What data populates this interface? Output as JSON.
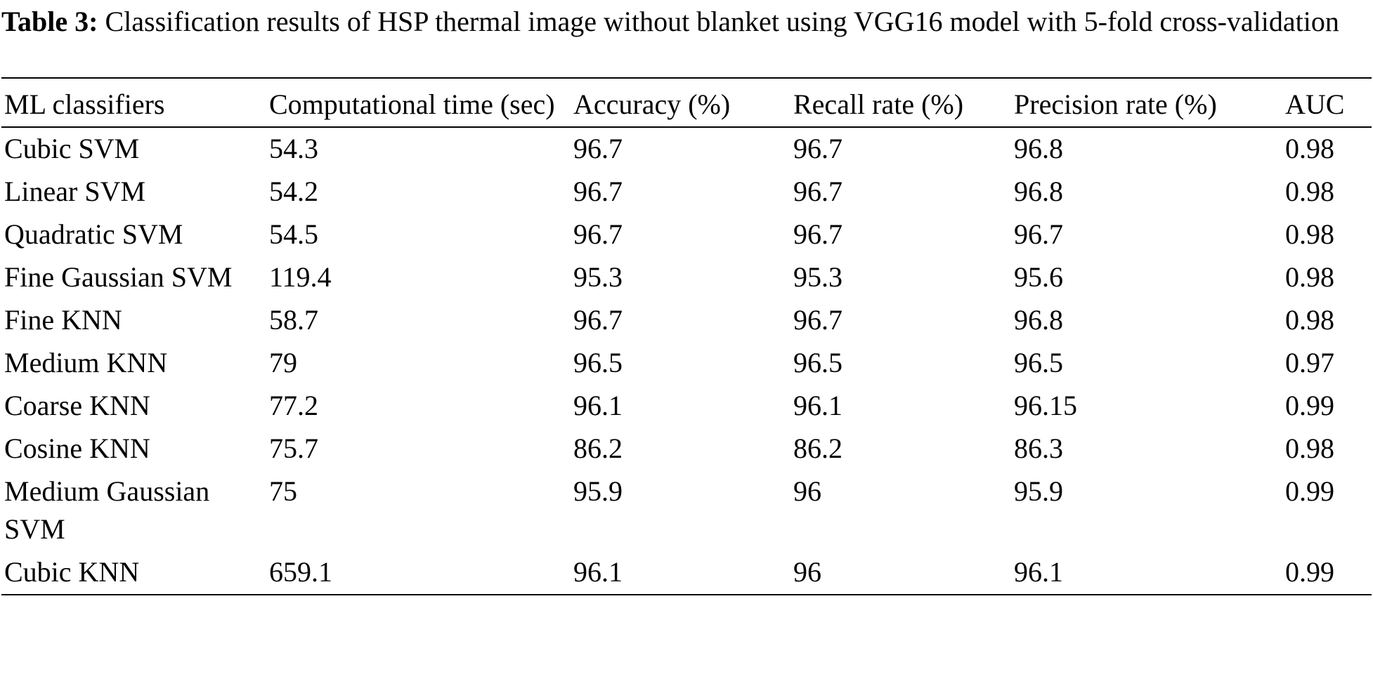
{
  "caption": {
    "label": "Table 3:",
    "text": "Classification results of HSP thermal image without blanket using VGG16 model with 5-fold cross-validation"
  },
  "table": {
    "header": [
      "ML classifiers",
      "Computational time (sec)",
      "Accuracy (%)",
      "Recall rate (%)",
      "Precision rate (%)",
      "AUC"
    ],
    "rows": [
      [
        "Cubic SVM",
        "54.3",
        "96.7",
        "96.7",
        "96.8",
        "0.98"
      ],
      [
        "Linear SVM",
        "54.2",
        "96.7",
        "96.7",
        "96.8",
        "0.98"
      ],
      [
        "Quadratic SVM",
        "54.5",
        "96.7",
        "96.7",
        "96.7",
        "0.98"
      ],
      [
        "Fine Gaussian SVM",
        "119.4",
        "95.3",
        "95.3",
        "95.6",
        "0.98"
      ],
      [
        "Fine KNN",
        "58.7",
        "96.7",
        "96.7",
        "96.8",
        "0.98"
      ],
      [
        "Medium KNN",
        "79",
        "96.5",
        "96.5",
        "96.5",
        "0.97"
      ],
      [
        "Coarse KNN",
        "77.2",
        "96.1",
        "96.1",
        "96.15",
        "0.99"
      ],
      [
        "Cosine KNN",
        "75.7",
        "86.2",
        "86.2",
        "86.3",
        "0.98"
      ],
      [
        "Medium Gaussian SVM",
        "75",
        "95.9",
        "96",
        "95.9",
        "0.99"
      ],
      [
        "Cubic KNN",
        "659.1",
        "96.1",
        "96",
        "96.1",
        "0.99"
      ]
    ]
  }
}
